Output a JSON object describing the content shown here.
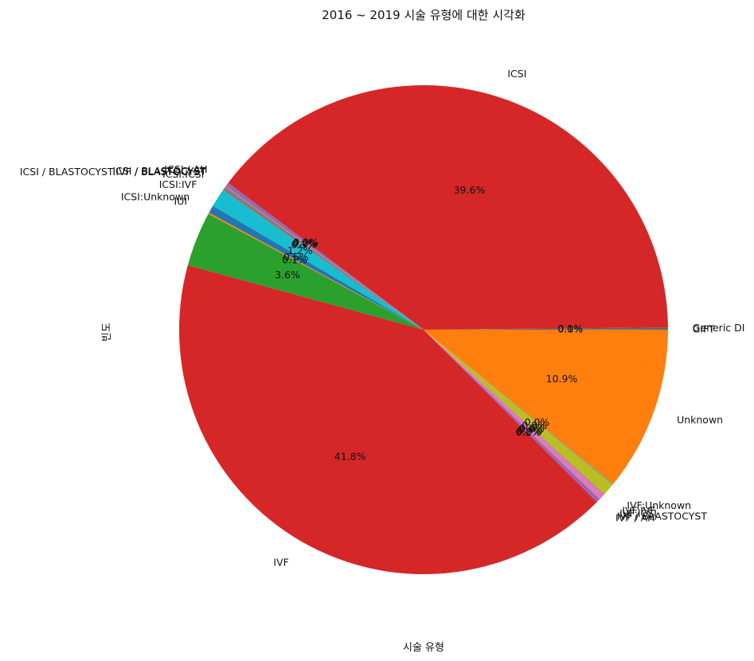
{
  "chart_data": {
    "type": "pie",
    "title": "2016 ~ 2019 시술 유형에 대한 시각화",
    "xlabel": "시술 유형",
    "ylabel": "빈도",
    "start_angle_deg": 0,
    "direction": "counterclockwise",
    "slices": [
      {
        "label": "GIFT",
        "value": 0.05,
        "pct_text": "0.0%",
        "color": "#1f77b4"
      },
      {
        "label": "Generic DI",
        "value": 0.1,
        "pct_text": "0.1%",
        "color": "#8c564b"
      },
      {
        "label": "ICSI",
        "value": 39.6,
        "pct_text": "39.6%",
        "color": "#d62728"
      },
      {
        "label": "ICSI / AH",
        "value": 0.2,
        "pct_text": "0.2%",
        "color": "#9467bd"
      },
      {
        "label": "ICSI / BLASTOCYST",
        "value": 0.05,
        "pct_text": "0.0%",
        "color": "#8c564b"
      },
      {
        "label": "ICSI / BLASTOCYST:IVF / BLASTOCYST",
        "value": 0.05,
        "pct_text": "0.0%",
        "color": "#e377c2"
      },
      {
        "label": "ICSI:ICSI",
        "value": 0.3,
        "pct_text": "0.3%",
        "color": "#7f7f7f"
      },
      {
        "label": "ICSI:IVF",
        "value": 1.2,
        "pct_text": "1.2%",
        "color": "#17becf"
      },
      {
        "label": "ICSI:Unknown",
        "value": 0.5,
        "pct_text": "0.5%",
        "color": "#1f77b4"
      },
      {
        "label": "IUI",
        "value": 0.1,
        "pct_text": "0.1%",
        "color": "#ff7f0e"
      },
      {
        "label": "",
        "value": 3.6,
        "pct_text": "3.6%",
        "color": "#2ca02c"
      },
      {
        "label": "IVF",
        "value": 41.8,
        "pct_text": "41.8%",
        "color": "#d62728"
      },
      {
        "label": "IVF / AH",
        "value": 0.2,
        "pct_text": "0.2%",
        "color": "#9467bd"
      },
      {
        "label": "IVF / BLASTOCYST",
        "value": 0.05,
        "pct_text": "0.0%",
        "color": "#8c564b"
      },
      {
        "label": "IVF:ICSI",
        "value": 0.4,
        "pct_text": "0.4%",
        "color": "#e377c2"
      },
      {
        "label": "IVF:IVF",
        "value": 0.05,
        "pct_text": "0.0%",
        "color": "#7f7f7f"
      },
      {
        "label": "IVF:Unknown",
        "value": 0.8,
        "pct_text": "0.8%",
        "color": "#bcbd22"
      },
      {
        "label": "",
        "value": 0.05,
        "pct_text": "0.0%",
        "color": "#17becf"
      },
      {
        "label": "Unknown",
        "value": 10.9,
        "pct_text": "10.9%",
        "color": "#ff7f0e"
      }
    ]
  }
}
